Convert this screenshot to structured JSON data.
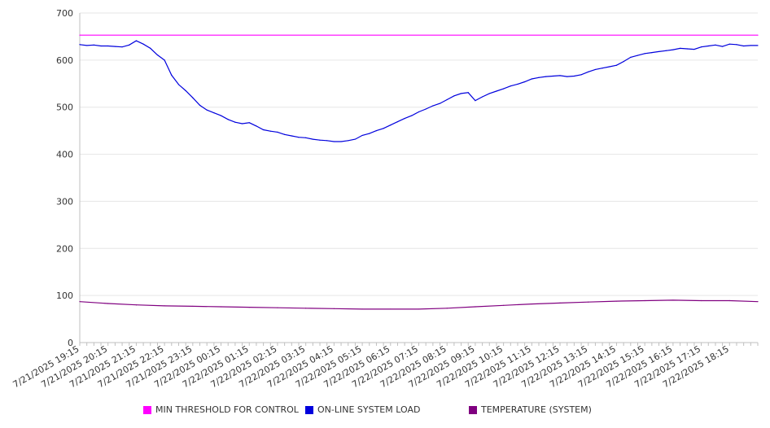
{
  "chart_data": {
    "type": "line",
    "title": "",
    "xlabel": "",
    "ylabel": "",
    "ylim": [
      0,
      700
    ],
    "y_ticks": [
      "0",
      "100",
      "200",
      "300",
      "400",
      "500",
      "600",
      "700"
    ],
    "x_tick_labels": [
      "7/21/2025 19:15",
      "7/21/2025 20:15",
      "7/21/2025 21:15",
      "7/21/2025 22:15",
      "7/21/2025 23:15",
      "7/22/2025 00:15",
      "7/22/2025 01:15",
      "7/22/2025 02:15",
      "7/22/2025 03:15",
      "7/22/2025 04:15",
      "7/22/2025 05:15",
      "7/22/2025 06:15",
      "7/22/2025 07:15",
      "7/22/2025 08:15",
      "7/22/2025 09:15",
      "7/22/2025 10:15",
      "7/22/2025 11:15",
      "7/22/2025 12:15",
      "7/22/2025 13:15",
      "7/22/2025 14:15",
      "7/22/2025 15:15",
      "7/22/2025 16:15",
      "7/22/2025 17:15",
      "7/22/2025 18:15"
    ],
    "x_time_range": [
      "7/21/2025 19:15",
      "7/22/2025 19:15"
    ],
    "grid": "horizontal",
    "legend_position": "bottom",
    "series": [
      {
        "name": "MIN THRESHOLD FOR CONTROL",
        "color": "#ff00ff",
        "times": [
          "7/21/2025 19:15",
          "7/22/2025 19:15"
        ],
        "values": [
          653,
          653
        ]
      },
      {
        "name": "ON-LINE SYSTEM LOAD",
        "color": "#0000dd",
        "times": [
          "7/21/2025 19:15",
          "7/21/2025 19:30",
          "7/21/2025 19:45",
          "7/21/2025 20:00",
          "7/21/2025 20:15",
          "7/21/2025 20:30",
          "7/21/2025 20:45",
          "7/21/2025 21:00",
          "7/21/2025 21:15",
          "7/21/2025 21:30",
          "7/21/2025 21:45",
          "7/21/2025 22:00",
          "7/21/2025 22:15",
          "7/21/2025 22:30",
          "7/21/2025 22:45",
          "7/21/2025 23:00",
          "7/21/2025 23:15",
          "7/21/2025 23:30",
          "7/21/2025 23:45",
          "7/22/2025 00:00",
          "7/22/2025 00:15",
          "7/22/2025 00:30",
          "7/22/2025 00:45",
          "7/22/2025 01:00",
          "7/22/2025 01:15",
          "7/22/2025 01:30",
          "7/22/2025 01:45",
          "7/22/2025 02:00",
          "7/22/2025 02:15",
          "7/22/2025 02:30",
          "7/22/2025 02:45",
          "7/22/2025 03:00",
          "7/22/2025 03:15",
          "7/22/2025 03:30",
          "7/22/2025 03:45",
          "7/22/2025 04:00",
          "7/22/2025 04:15",
          "7/22/2025 04:30",
          "7/22/2025 04:45",
          "7/22/2025 05:00",
          "7/22/2025 05:15",
          "7/22/2025 05:30",
          "7/22/2025 05:45",
          "7/22/2025 06:00",
          "7/22/2025 06:15",
          "7/22/2025 06:30",
          "7/22/2025 06:45",
          "7/22/2025 07:00",
          "7/22/2025 07:15",
          "7/22/2025 07:30",
          "7/22/2025 07:45",
          "7/22/2025 08:00",
          "7/22/2025 08:15",
          "7/22/2025 08:30",
          "7/22/2025 08:45",
          "7/22/2025 09:00",
          "7/22/2025 09:15",
          "7/22/2025 09:30",
          "7/22/2025 09:45",
          "7/22/2025 10:00",
          "7/22/2025 10:15",
          "7/22/2025 10:30",
          "7/22/2025 10:45",
          "7/22/2025 11:00",
          "7/22/2025 11:15",
          "7/22/2025 11:30",
          "7/22/2025 11:45",
          "7/22/2025 12:00",
          "7/22/2025 12:15",
          "7/22/2025 12:30",
          "7/22/2025 12:45",
          "7/22/2025 13:00",
          "7/22/2025 13:15",
          "7/22/2025 13:30",
          "7/22/2025 13:45",
          "7/22/2025 14:00",
          "7/22/2025 14:15",
          "7/22/2025 14:30",
          "7/22/2025 14:45",
          "7/22/2025 15:00",
          "7/22/2025 15:15",
          "7/22/2025 15:30",
          "7/22/2025 15:45",
          "7/22/2025 16:00",
          "7/22/2025 16:15",
          "7/22/2025 16:30",
          "7/22/2025 16:45",
          "7/22/2025 17:00",
          "7/22/2025 17:15",
          "7/22/2025 17:30",
          "7/22/2025 17:45",
          "7/22/2025 18:00",
          "7/22/2025 18:15",
          "7/22/2025 18:30",
          "7/22/2025 18:45",
          "7/22/2025 19:00",
          "7/22/2025 19:15"
        ],
        "values": [
          633,
          631,
          632,
          630,
          630,
          629,
          628,
          632,
          641,
          634,
          625,
          611,
          600,
          568,
          548,
          535,
          520,
          504,
          494,
          488,
          482,
          474,
          468,
          465,
          467,
          460,
          452,
          449,
          447,
          442,
          439,
          436,
          435,
          432,
          430,
          429,
          427,
          427,
          429,
          432,
          440,
          444,
          450,
          455,
          462,
          469,
          476,
          482,
          490,
          496,
          503,
          508,
          516,
          524,
          529,
          531,
          514,
          522,
          529,
          534,
          539,
          545,
          549,
          554,
          560,
          563,
          565,
          566,
          567,
          565,
          566,
          569,
          575,
          580,
          583,
          586,
          589,
          597,
          606,
          610,
          614,
          616,
          618,
          620,
          622,
          625,
          624,
          623,
          628,
          630,
          632,
          629,
          634,
          633,
          630,
          631,
          631
        ]
      },
      {
        "name": "TEMPERATURE (SYSTEM)",
        "color": "#800080",
        "times": [
          "7/21/2025 19:15",
          "7/21/2025 20:15",
          "7/21/2025 21:15",
          "7/21/2025 22:15",
          "7/21/2025 23:15",
          "7/22/2025 00:15",
          "7/22/2025 01:15",
          "7/22/2025 02:15",
          "7/22/2025 03:15",
          "7/22/2025 04:15",
          "7/22/2025 05:15",
          "7/22/2025 06:15",
          "7/22/2025 07:15",
          "7/22/2025 08:15",
          "7/22/2025 09:15",
          "7/22/2025 10:15",
          "7/22/2025 11:15",
          "7/22/2025 12:15",
          "7/22/2025 13:15",
          "7/22/2025 14:15",
          "7/22/2025 15:15",
          "7/22/2025 16:15",
          "7/22/2025 17:15",
          "7/22/2025 18:15",
          "7/22/2025 19:15"
        ],
        "values": [
          87,
          83,
          80,
          78,
          77,
          76,
          75,
          74,
          73,
          72,
          71,
          71,
          71,
          73,
          76,
          79,
          82,
          84,
          86,
          88,
          89,
          90,
          89,
          89,
          87
        ]
      }
    ]
  }
}
